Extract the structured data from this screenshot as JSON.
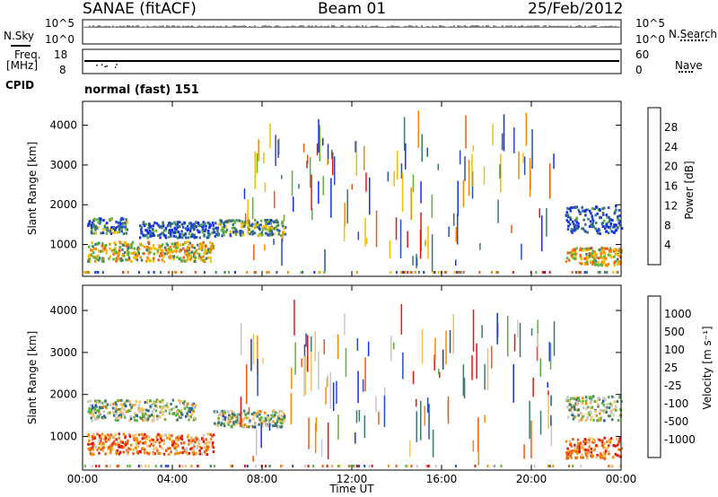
{
  "header": {
    "station": "SANAE (fitACF)",
    "beam": "Beam 01",
    "date": "25/Feb/2012"
  },
  "top_panel": {
    "left_label": "N.Sky",
    "right_label": "N.Search",
    "left_ticks": [
      "10^5",
      "10^0"
    ],
    "right_ticks": [
      "10^5",
      "10^0"
    ]
  },
  "freq_panel": {
    "left_label": "Freq.",
    "left_unit": "[MHz]",
    "right_label": "Nave",
    "left_ticks": [
      "18",
      "8"
    ],
    "right_ticks": [
      "60",
      "0"
    ]
  },
  "cpid": {
    "label": "CPID",
    "value": "normal (fast) 151"
  },
  "colors": {
    "power_scale": [
      "#1230f0",
      "#2850b8",
      "#3a7a70",
      "#5fb33a",
      "#f0c000",
      "#f58a00",
      "#ee5a10",
      "#e01810"
    ],
    "velocity_scale": [
      "#1230f0",
      "#2850b8",
      "#3a7a70",
      "#5fb33a",
      "#c8c8c8",
      "#f5c060",
      "#f58a00",
      "#ee5a10",
      "#e01810"
    ]
  },
  "chart_data": [
    {
      "type": "heatmap",
      "title": "",
      "ylabel": "Slant Range [km]",
      "xlabel": "",
      "ylim": [
        200,
        4600
      ],
      "yticks": [
        "4000",
        "3000",
        "2000",
        "1000"
      ],
      "colorbar_label": "Power [dB]",
      "colorbar_ticks": [
        "28",
        "24",
        "20",
        "16",
        "12",
        "8",
        "4"
      ],
      "colorbar_range": [
        0,
        30
      ],
      "blobs": [
        {
          "t0": 0.2,
          "t1": 5.8,
          "r0": 600,
          "r1": 1100,
          "level": 0.55
        },
        {
          "t0": 0.2,
          "t1": 2.0,
          "r0": 1300,
          "r1": 1700,
          "level": 0.3
        },
        {
          "t0": 2.5,
          "t1": 6.0,
          "r0": 1200,
          "r1": 1600,
          "level": 0.2
        },
        {
          "t0": 6.0,
          "t1": 9.0,
          "r0": 1250,
          "r1": 1650,
          "level": 0.35
        },
        {
          "t0": 21.5,
          "t1": 24.0,
          "r0": 500,
          "r1": 950,
          "level": 0.6
        },
        {
          "t0": 21.5,
          "t1": 24.0,
          "r0": 1300,
          "r1": 2000,
          "level": 0.15
        }
      ]
    },
    {
      "type": "heatmap",
      "title": "",
      "ylabel": "Slant Range [km]",
      "xlabel": "Time UT",
      "ylim": [
        200,
        4600
      ],
      "yticks": [
        "4000",
        "3000",
        "2000",
        "1000"
      ],
      "colorbar_label": "Velocity [m s⁻¹]",
      "colorbar_ticks": [
        "1000",
        "500",
        "100",
        "25",
        "-25",
        "-100",
        "-500",
        "-1000"
      ],
      "colorbar_range": [
        -1000,
        1000
      ],
      "xticks": [
        "00:00",
        "04:00",
        "08:00",
        "12:00",
        "16:00",
        "20:00",
        "00:00"
      ],
      "xlim": [
        0,
        24
      ],
      "blobs": [
        {
          "t0": 0.2,
          "t1": 5.8,
          "r0": 600,
          "r1": 1100,
          "level": 0.75
        },
        {
          "t0": 0.2,
          "t1": 5.0,
          "r0": 1400,
          "r1": 1900,
          "level": 0.45
        },
        {
          "t0": 5.8,
          "t1": 9.0,
          "r0": 1250,
          "r1": 1650,
          "level": 0.45
        },
        {
          "t0": 21.5,
          "t1": 24.0,
          "r0": 500,
          "r1": 1000,
          "level": 0.8
        },
        {
          "t0": 21.5,
          "t1": 24.0,
          "r0": 1400,
          "r1": 2000,
          "level": 0.45
        }
      ]
    }
  ]
}
